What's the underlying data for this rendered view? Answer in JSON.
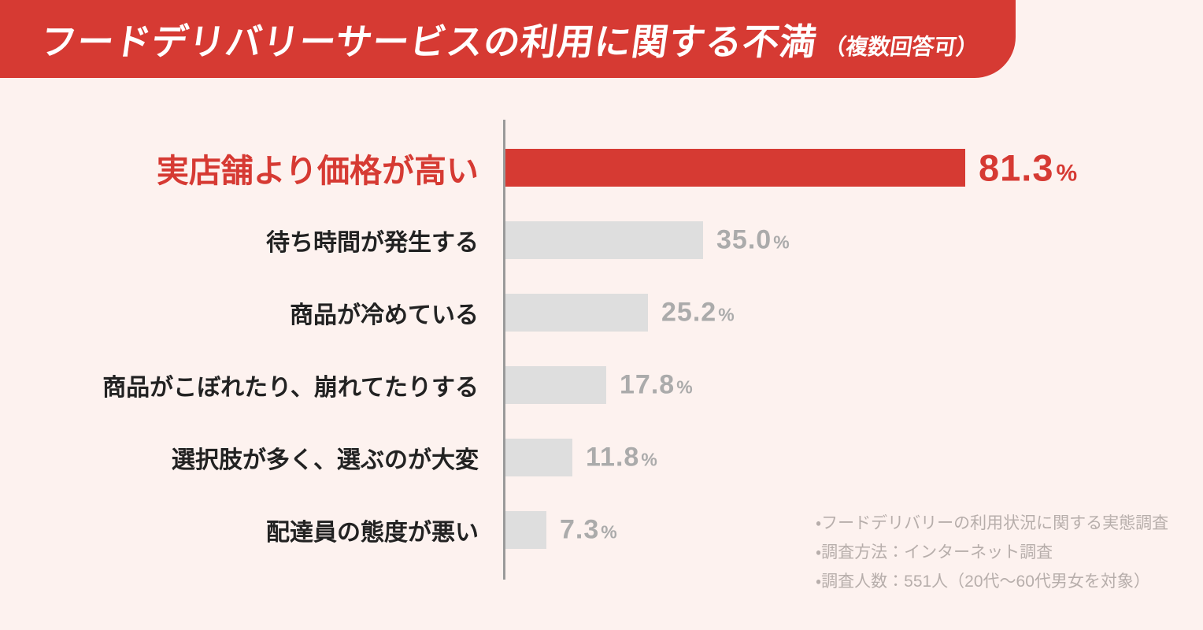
{
  "header": {
    "title": "フードデリバリーサービスの利用に関する不満",
    "title_suffix": "（複数回答可）"
  },
  "chart_data": {
    "type": "bar",
    "orientation": "horizontal",
    "title": "フードデリバリーサービスの利用に関する不満（複数回答可）",
    "unit": "%",
    "categories": [
      "実店舗より価格が高い",
      "待ち時間が発生する",
      "商品が冷めている",
      "商品がこぼれたり、崩れてたりする",
      "選択肢が多く、選ぶのが大変",
      "配達員の態度が悪い"
    ],
    "values": [
      81.3,
      35.0,
      25.2,
      17.8,
      11.8,
      7.3
    ],
    "value_labels": [
      "81.3",
      "35.0",
      "25.2",
      "17.8",
      "11.8",
      "7.3"
    ],
    "highlight_index": 0,
    "xlim": [
      0,
      100
    ],
    "grid": false,
    "legend": "none"
  },
  "notes": {
    "lines": [
      "・フードデリバリーの利用状況に関する実態調査",
      "・調査方法：インターネット調査",
      "・調査人数：551人（20代～60代男女を対象）"
    ]
  },
  "colors": {
    "accent_red": "#d63a33",
    "bar_gray": "#dedede",
    "background": "#fdf2ef",
    "label_dark": "#222222",
    "value_gray": "#ababab",
    "note_gray": "#b7aeab",
    "axis_gray": "#9a9a9a",
    "title_white": "#ffffff"
  }
}
